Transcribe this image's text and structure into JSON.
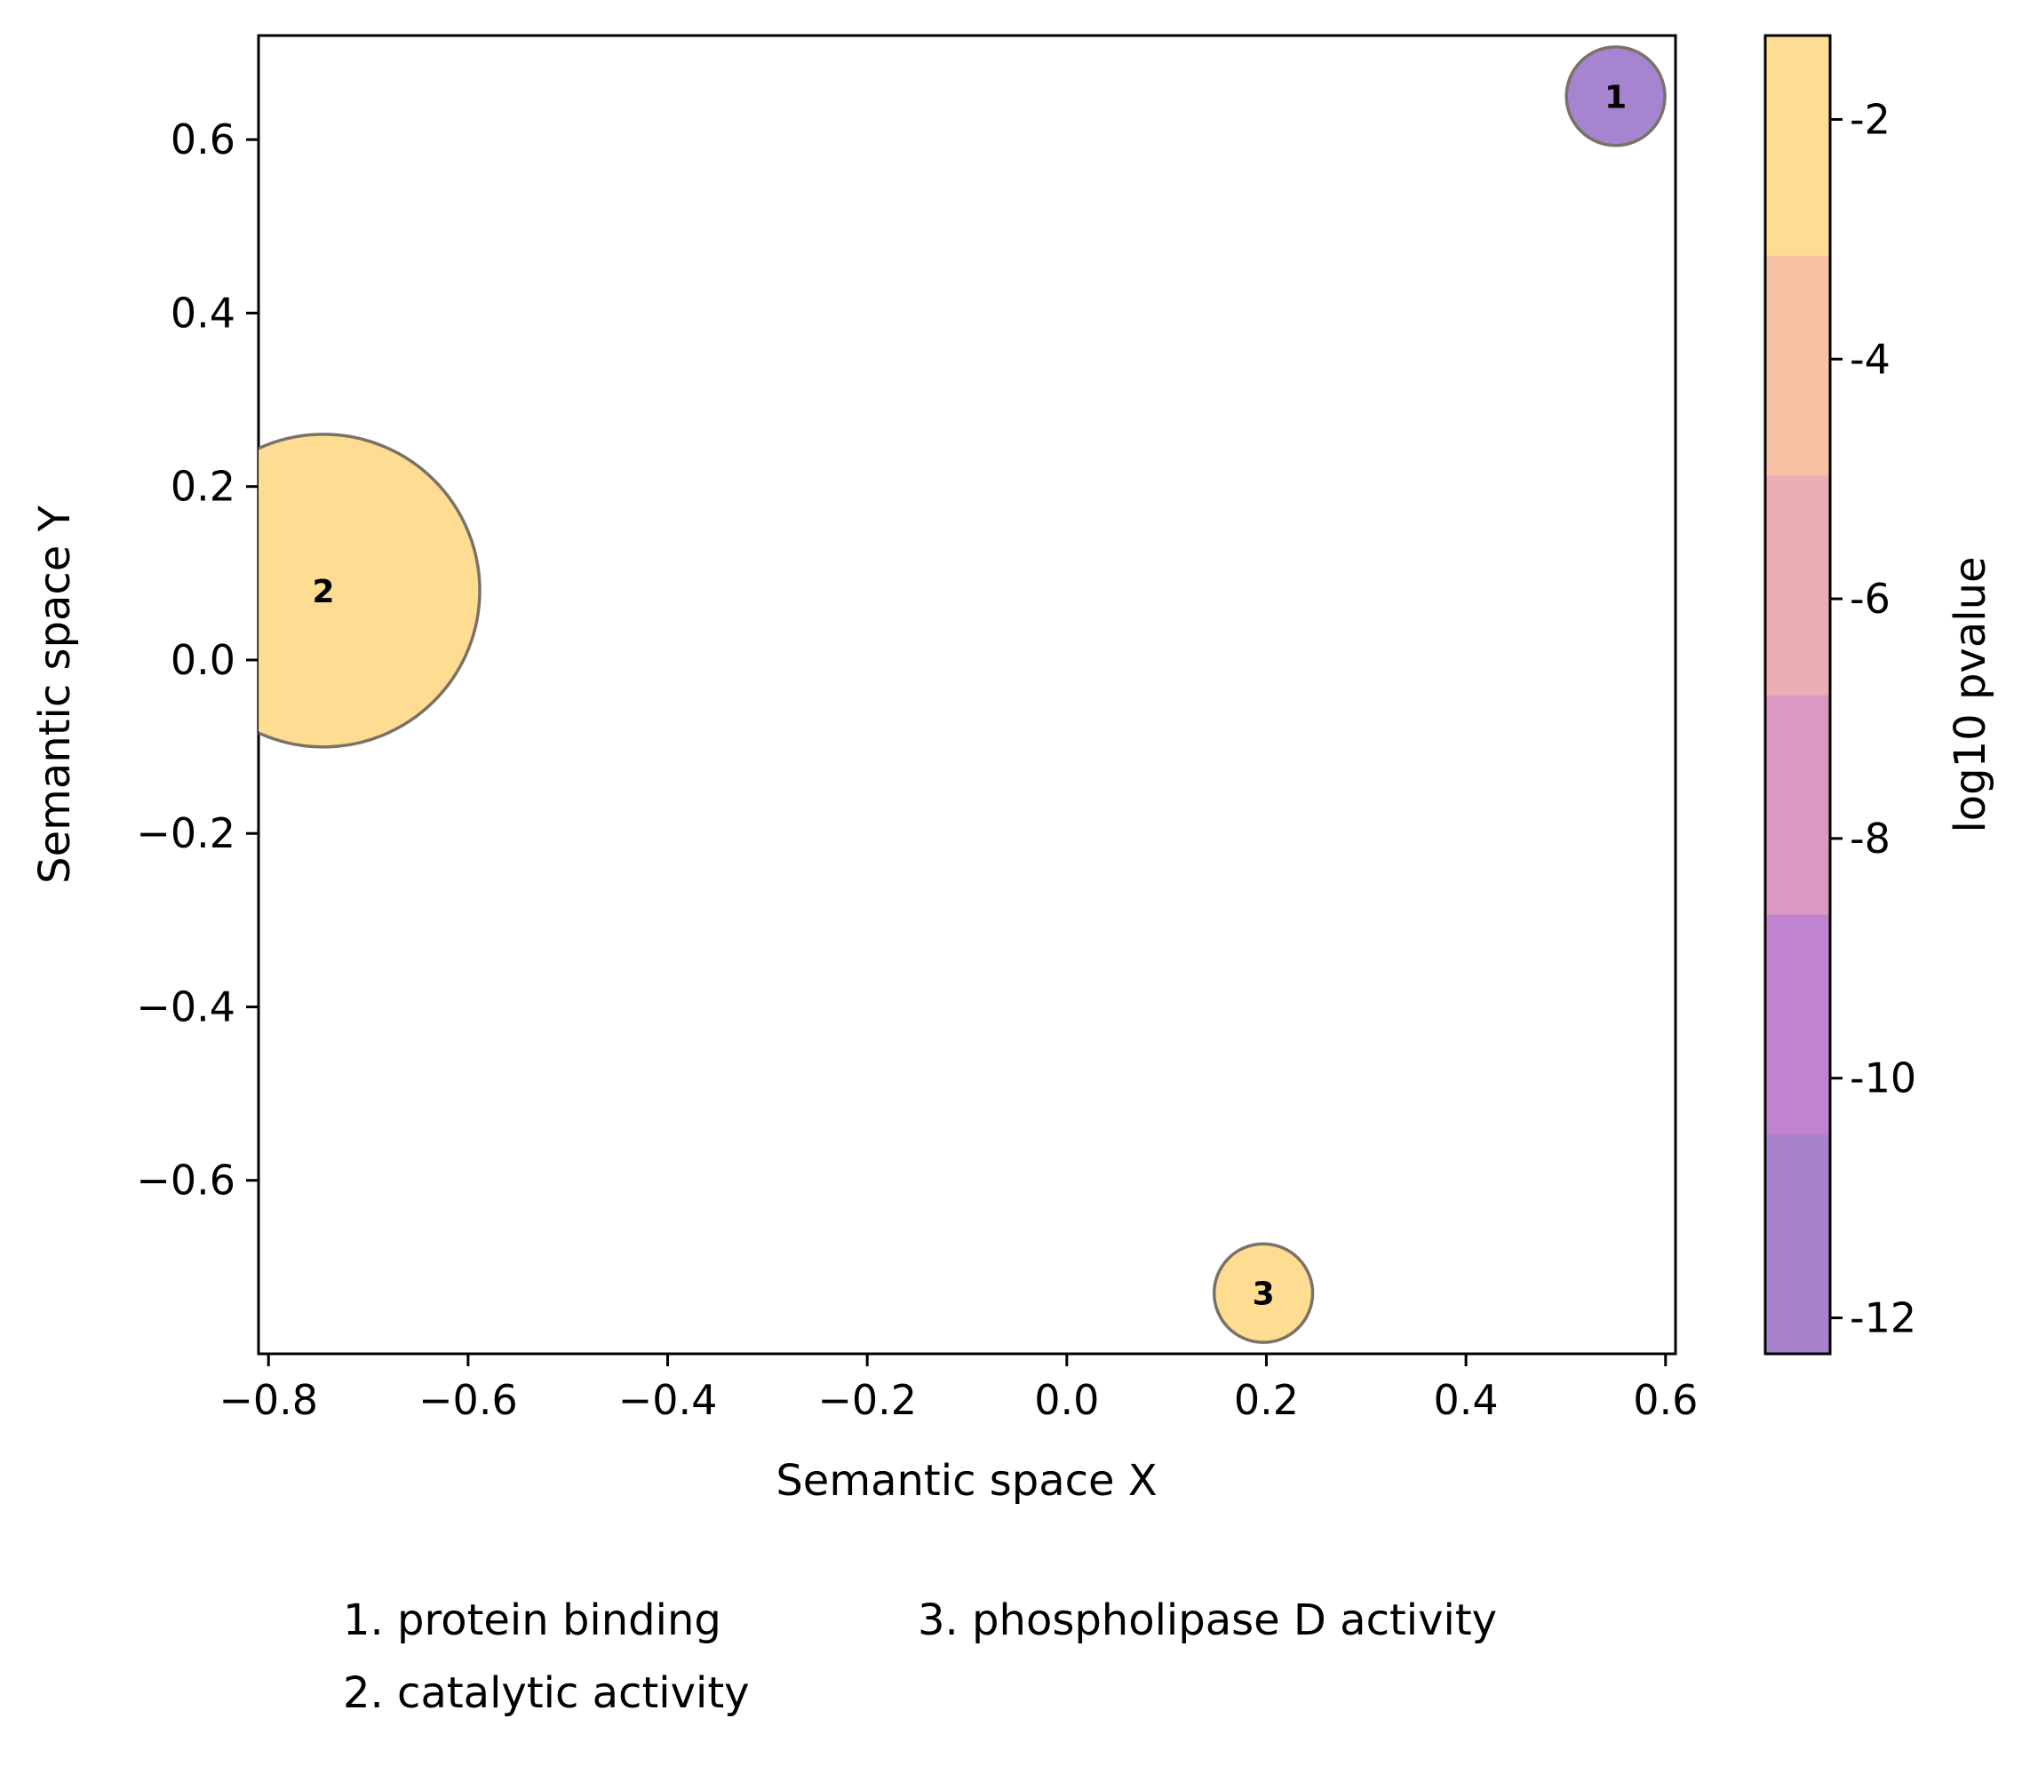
{
  "chart_data": {
    "type": "scatter",
    "xlabel": "Semantic space X",
    "ylabel": "Semantic space Y",
    "xlim": [
      -0.81,
      0.61
    ],
    "ylim": [
      -0.8,
      0.72
    ],
    "x_ticks": [
      "−0.8",
      "−0.6",
      "−0.4",
      "−0.2",
      "0.0",
      "0.2",
      "0.4",
      "0.6"
    ],
    "x_tick_values": [
      -0.8,
      -0.6,
      -0.4,
      -0.2,
      0.0,
      0.2,
      0.4,
      0.6
    ],
    "y_ticks": [
      "0.6",
      "0.4",
      "0.2",
      "0.0",
      "−0.2",
      "−0.4",
      "−0.6"
    ],
    "y_tick_values": [
      0.6,
      0.4,
      0.2,
      0.0,
      -0.2,
      -0.4,
      -0.6
    ],
    "points": [
      {
        "label": "1",
        "term": "protein binding",
        "x": 0.55,
        "y": 0.65,
        "log10_pvalue": -12,
        "size_rel": 0.315,
        "color": "#a784d0"
      },
      {
        "label": "2",
        "term": "catalytic activity",
        "x": -0.745,
        "y": 0.08,
        "log10_pvalue": -1.5,
        "size_rel": 1.0,
        "color": "#fedd93"
      },
      {
        "label": "3",
        "term": "phospholipase D activity",
        "x": 0.197,
        "y": -0.73,
        "log10_pvalue": -1.5,
        "size_rel": 0.315,
        "color": "#fedd93"
      }
    ],
    "colorbar": {
      "label": "log10 pvalue",
      "range": [
        -12.3,
        -1.3
      ],
      "ticks": [
        "-2",
        "-4",
        "-6",
        "-8",
        "-10",
        "-12"
      ],
      "tick_values": [
        -2,
        -4,
        -6,
        -8,
        -10,
        -12
      ],
      "bands": [
        "#a783ce",
        "#c183cf",
        "#da98c3",
        "#ebaeb2",
        "#f8c3a5",
        "#fedd93"
      ]
    },
    "legend": {
      "col1": [
        "1. protein binding",
        "2. catalytic activity"
      ],
      "col2": [
        "3. phospholipase D activity"
      ]
    },
    "grid": false
  }
}
